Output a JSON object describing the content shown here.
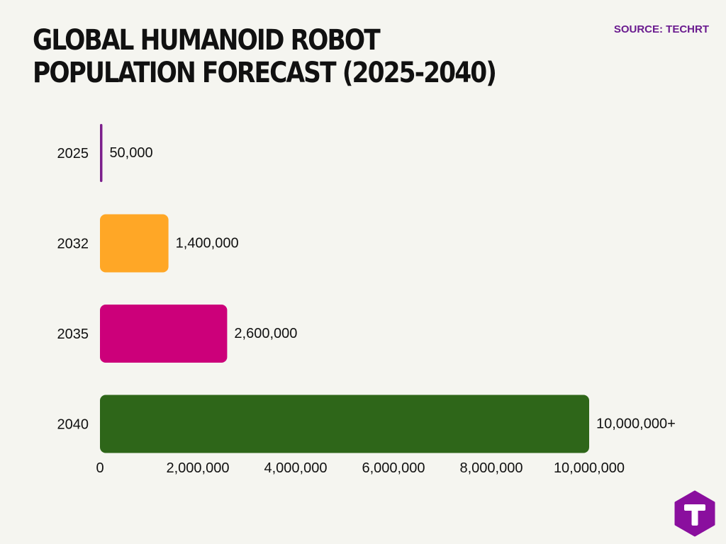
{
  "header": {
    "title": "GLOBAL HUMANOID ROBOT POPULATION FORECAST (2025-2040)",
    "source": "SOURCE: TECHRT"
  },
  "chart_data": {
    "type": "bar",
    "orientation": "horizontal",
    "categories": [
      "2025",
      "2032",
      "2035",
      "2040"
    ],
    "values": [
      50000,
      1400000,
      2600000,
      10000000
    ],
    "data_labels": [
      "50,000",
      "1,400,000",
      "2,600,000",
      "10,000,000+"
    ],
    "colors": [
      "#7b1f8c",
      "#ffa726",
      "#cc007a",
      "#2e6619"
    ],
    "xlim": [
      0,
      10000000
    ],
    "xticks": [
      0,
      2000000,
      4000000,
      6000000,
      8000000,
      10000000
    ],
    "xtick_labels": [
      "0",
      "2,000,000",
      "4,000,000",
      "6,000,000",
      "8,000,000",
      "10,000,000"
    ],
    "grid": false,
    "legend": "none"
  },
  "logo": {
    "icon": "techrt-hexagon-logo",
    "color": "#8a0f9e"
  }
}
